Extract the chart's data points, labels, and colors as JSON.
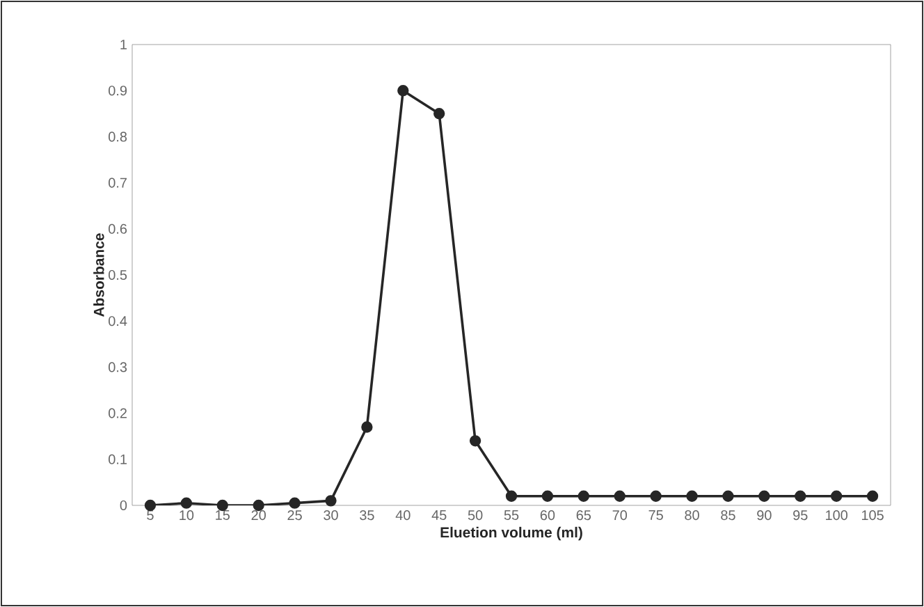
{
  "chart_data": {
    "type": "line",
    "xlabel": "Eluetion volume (ml)",
    "ylabel": "Absorbance",
    "categories": [
      "5",
      "10",
      "15",
      "20",
      "25",
      "30",
      "35",
      "40",
      "45",
      "50",
      "55",
      "60",
      "65",
      "70",
      "75",
      "80",
      "85",
      "90",
      "95",
      "100",
      "105"
    ],
    "values": [
      0.0,
      0.005,
      0.0,
      0.0,
      0.005,
      0.01,
      0.17,
      0.9,
      0.85,
      0.14,
      0.02,
      0.02,
      0.02,
      0.02,
      0.02,
      0.02,
      0.02,
      0.02,
      0.02,
      0.02,
      0.02
    ],
    "color": "#262626",
    "marker": "circle",
    "line_style": "solid",
    "grid": false,
    "ylim": [
      0,
      1
    ],
    "yticks": [
      0,
      0.1,
      0.2,
      0.3,
      0.4,
      0.5,
      0.6,
      0.7,
      0.8,
      0.9,
      1
    ]
  }
}
